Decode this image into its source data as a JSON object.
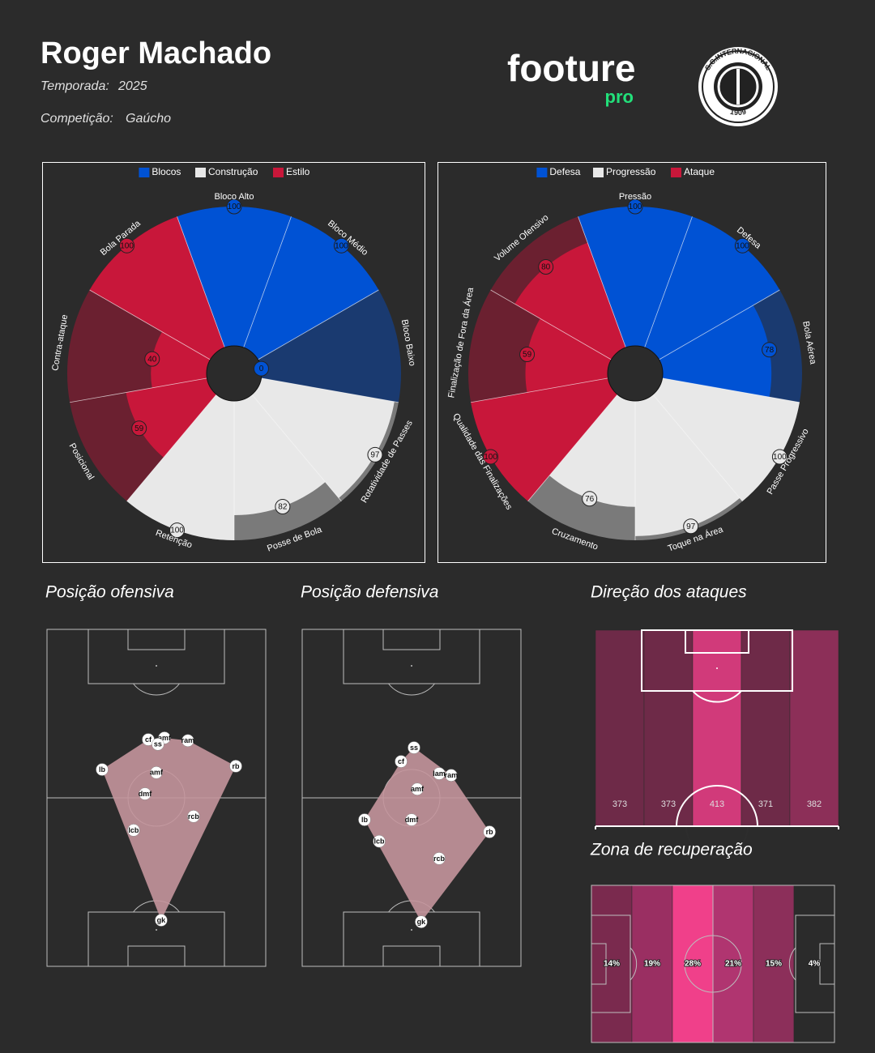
{
  "header": {
    "name": "Roger Machado",
    "season_label": "Temporada:",
    "season": "2025",
    "competition_label": "Competição:",
    "competition": "Gaúcho",
    "logo": "footure",
    "logo_sub": "pro",
    "club": "S.C.INTERNACIONAL",
    "club_year": "1909"
  },
  "chart_data": [
    {
      "type": "polar_bar",
      "rlim": [
        0,
        100
      ],
      "series": [
        {
          "name": "Blocos",
          "color": "#0052d4",
          "bg_color": "#1a3a70",
          "categories": [
            "Bloco Alto",
            "Bloco Médio",
            "Bloco Baixo"
          ],
          "values": [
            100,
            100,
            0
          ]
        },
        {
          "name": "Construção",
          "color": "#e8e8e8",
          "bg_color": "#7a7a7a",
          "categories": [
            "Rotatividade de Passes",
            "Posse de Bola",
            "Retenção"
          ],
          "values": [
            97,
            82,
            100
          ]
        },
        {
          "name": "Estilo",
          "color": "#c8173a",
          "bg_color": "#6b2030",
          "categories": [
            "Posicional",
            "Contra-ataque",
            "Bola Parada"
          ],
          "values": [
            59,
            40,
            100
          ]
        }
      ]
    },
    {
      "type": "polar_bar",
      "rlim": [
        0,
        100
      ],
      "series": [
        {
          "name": "Defesa",
          "color": "#0052d4",
          "bg_color": "#1a3a70",
          "categories": [
            "Pressão",
            "Defesa",
            "Bola Aérea"
          ],
          "values": [
            100,
            100,
            78
          ]
        },
        {
          "name": "Progressão",
          "color": "#e8e8e8",
          "bg_color": "#7a7a7a",
          "categories": [
            "Passe Progressivo",
            "Toque na Área",
            "Cruzamento"
          ],
          "values": [
            100,
            97,
            76
          ]
        },
        {
          "name": "Ataque",
          "color": "#c8173a",
          "bg_color": "#6b2030",
          "categories": [
            "Qualidade das Finalizações",
            "Finalização de Fora da Área",
            "Volume Ofensivo"
          ],
          "values": [
            100,
            59,
            80
          ]
        }
      ]
    },
    {
      "type": "formation",
      "title": "Posição ofensiva",
      "color": "#c4959c",
      "xlim": [
        0,
        100
      ],
      "ylim": [
        0,
        100
      ],
      "labels": [
        "cf",
        "amf",
        "ss",
        "ram",
        "lb",
        "rb",
        "amf",
        "dmf",
        "rcb",
        "lcb",
        "gk"
      ],
      "x": [
        46.3,
        53.7,
        50.7,
        64.4,
        25.2,
        86.3,
        50.0,
        44.8,
        67.0,
        39.6,
        52.2
      ],
      "y": [
        32.7,
        32.2,
        34.1,
        33.0,
        41.6,
        40.6,
        42.5,
        48.8,
        55.5,
        59.6,
        86.3
      ]
    },
    {
      "type": "formation",
      "title": "Posição defensiva",
      "color": "#c4959c",
      "xlim": [
        0,
        100
      ],
      "ylim": [
        0,
        100
      ],
      "labels": [
        "ss",
        "cf",
        "lam",
        "ram",
        "amf",
        "lb",
        "dmf",
        "rb",
        "lcb",
        "rcb",
        "gk"
      ],
      "x": [
        51.1,
        45.2,
        62.6,
        68.1,
        52.6,
        28.5,
        50.0,
        85.6,
        35.2,
        62.6,
        54.4
      ],
      "y": [
        35.1,
        39.2,
        42.8,
        43.3,
        47.4,
        56.5,
        56.5,
        60.1,
        62.9,
        68.0,
        86.8
      ]
    },
    {
      "type": "zones",
      "orientation": "vertical",
      "title": "Direção dos ataques",
      "values": [
        373,
        373,
        413,
        371,
        382
      ],
      "colors": [
        "#6e2a48",
        "#6e2a48",
        "#d13a7a",
        "#6e2a48",
        "#8c2f58"
      ]
    },
    {
      "type": "zones",
      "orientation": "horizontal",
      "title": "Zona de recuperação",
      "values": [
        14,
        19,
        28,
        21,
        15,
        4
      ],
      "value_labels": [
        "14%",
        "19%",
        "28%",
        "21%",
        "15%",
        "4%"
      ],
      "colors": [
        "#7a2a4e",
        "#9a2f62",
        "#f0408a",
        "#b03570",
        "#8c2f5a",
        "#2b2b2b"
      ]
    }
  ]
}
